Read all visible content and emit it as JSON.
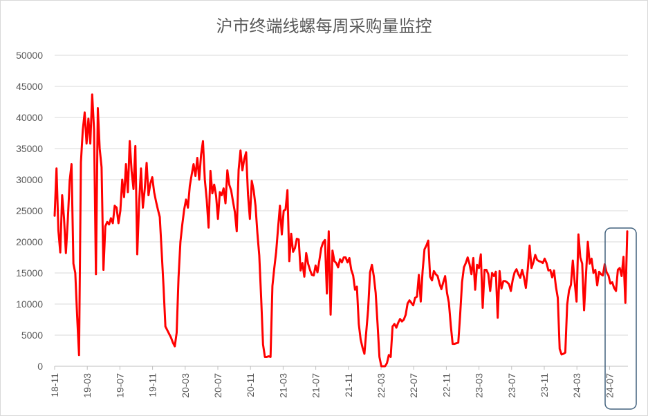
{
  "chart_data": {
    "type": "line",
    "title": "沪市终端线螺每周采购量监控",
    "xlabel": "",
    "ylabel": "",
    "ylim": [
      0,
      50000
    ],
    "yticks": [
      0,
      5000,
      10000,
      15000,
      20000,
      25000,
      30000,
      35000,
      40000,
      45000,
      50000
    ],
    "xticks": [
      "18-11",
      "19-03",
      "19-07",
      "19-11",
      "20-03",
      "20-07",
      "20-11",
      "21-03",
      "21-07",
      "21-11",
      "22-03",
      "22-07",
      "22-11",
      "23-03",
      "23-07",
      "23-11",
      "24-03",
      "24-07"
    ],
    "grid": "horizontal",
    "legend": "none",
    "line_color": "#ff0000",
    "highlight_box_color": "#41617d",
    "series": [
      {
        "values": [
          24200,
          31800,
          21800,
          18300,
          27500,
          23800,
          18200,
          23400,
          29800,
          32500,
          16500,
          15000,
          8000,
          1800,
          32800,
          38000,
          40800,
          35800,
          39800,
          35800,
          43700,
          38000,
          14800,
          41500,
          35000,
          32000,
          15500,
          22500,
          23200,
          22800,
          23800,
          23000,
          25800,
          25500,
          23000,
          25000,
          30000,
          27200,
          32500,
          28000,
          36200,
          31400,
          28500,
          35400,
          18000,
          26200,
          31800,
          25500,
          28500,
          32700,
          27500,
          29400,
          30400,
          28000,
          26500,
          25200,
          24000,
          18500,
          12800,
          6400,
          5800,
          5200,
          4600,
          3800,
          3200,
          5400,
          14300,
          20000,
          22800,
          25200,
          26800,
          25500,
          29000,
          30800,
          32500,
          30600,
          33500,
          30000,
          34000,
          36200,
          30000,
          26800,
          22300,
          31400,
          27800,
          29200,
          27400,
          23700,
          28000,
          27500,
          28600,
          26200,
          31500,
          29200,
          28300,
          26500,
          24800,
          21700,
          31600,
          34700,
          31500,
          33300,
          34400,
          27600,
          23700,
          29800,
          28300,
          25800,
          21400,
          17800,
          11000,
          3500,
          1500,
          1500,
          1600,
          1500,
          12900,
          15800,
          18400,
          22200,
          25800,
          21200,
          25000,
          25200,
          28300,
          16900,
          21300,
          18400,
          19000,
          20500,
          20400,
          15400,
          16600,
          14400,
          18200,
          16500,
          15500,
          14700,
          14600,
          16200,
          15100,
          17000,
          19000,
          19900,
          20300,
          11700,
          21700,
          8300,
          18600,
          16900,
          16600,
          15900,
          17200,
          16700,
          17500,
          17500,
          16700,
          17400,
          15500,
          14600,
          12300,
          12800,
          6800,
          4300,
          3000,
          2000,
          5600,
          9200,
          15100,
          16300,
          14500,
          11800,
          6800,
          1500,
          0,
          0,
          0,
          500,
          1800,
          1500,
          6400,
          6800,
          6200,
          7000,
          7600,
          7200,
          7500,
          8300,
          10100,
          10600,
          10200,
          9800,
          11000,
          11200,
          14700,
          10400,
          15300,
          18800,
          19400,
          20200,
          14400,
          13800,
          15300,
          14800,
          14500,
          13300,
          12400,
          13500,
          14500,
          11800,
          10200,
          6600,
          3600,
          3600,
          3700,
          3800,
          8300,
          13500,
          15900,
          16600,
          17500,
          16400,
          14800,
          17400,
          12300,
          16300,
          15800,
          18000,
          9400,
          15500,
          15500,
          14800,
          12100,
          15000,
          14500,
          15200,
          7800,
          15300,
          12500,
          13700,
          13700,
          13500,
          13200,
          12100,
          13900,
          15100,
          15600,
          14800,
          14200,
          15500,
          14300,
          12600,
          15600,
          19400,
          15800,
          16700,
          17900,
          17100,
          16900,
          16800,
          16600,
          17300,
          16600,
          15400,
          15500,
          14300,
          15400,
          12800,
          11000,
          2800,
          1900,
          2000,
          2200,
          9900,
          12200,
          13100,
          17000,
          13500,
          10400,
          21200,
          17500,
          16500,
          9000,
          14600,
          20000,
          16500,
          17300,
          15000,
          15500,
          13000,
          15200,
          14800,
          14600,
          16400,
          15100,
          14600,
          13300,
          13500,
          12600,
          12100,
          15500,
          15800,
          14500,
          17600,
          10200,
          21700
        ]
      }
    ]
  }
}
